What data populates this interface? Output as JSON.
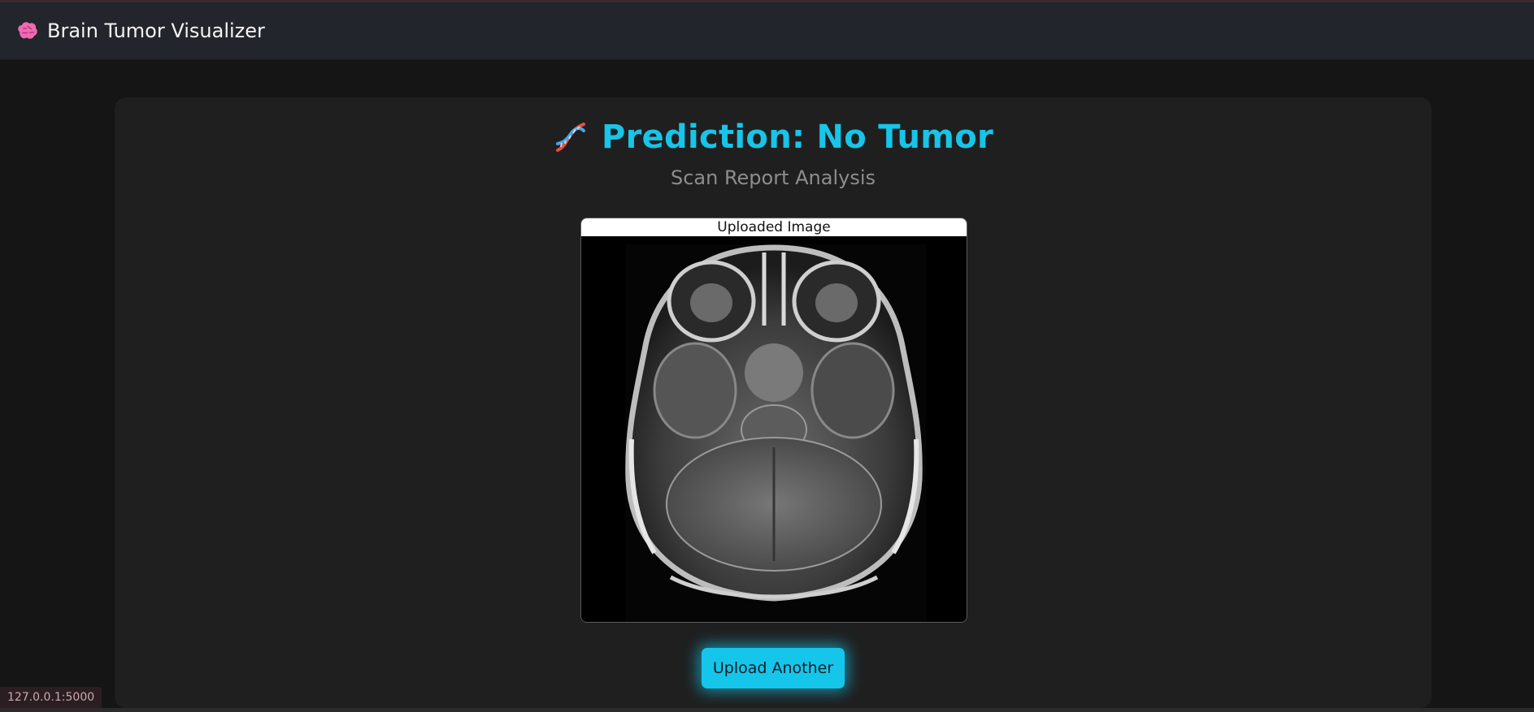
{
  "navbar": {
    "brand_icon": "brain-icon",
    "brand_label": "Brain Tumor Visualizer"
  },
  "result": {
    "icon": "dna-icon",
    "title": "Prediction: No Tumor",
    "subtitle": "Scan Report Analysis",
    "image_caption": "Uploaded Image",
    "accent_color": "#18c4e8"
  },
  "actions": {
    "upload_another_label": "Upload Another"
  },
  "status_bar": {
    "url": "127.0.0.1:5000"
  }
}
